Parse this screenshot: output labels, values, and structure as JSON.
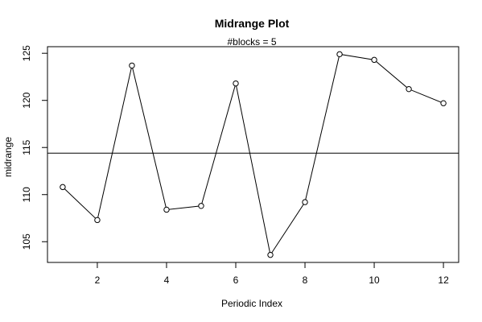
{
  "chart_data": {
    "type": "line",
    "title": "Midrange Plot",
    "subtitle": "#blocks = 5",
    "xlabel": "Periodic Index",
    "ylabel": "midrange",
    "x": [
      1,
      2,
      3,
      4,
      5,
      6,
      7,
      8,
      9,
      10,
      11,
      12
    ],
    "values": [
      110.8,
      107.3,
      123.7,
      108.4,
      108.8,
      121.8,
      103.6,
      109.2,
      124.9,
      124.3,
      121.2,
      119.7
    ],
    "reference_line": 114.4,
    "xlim": [
      0.56,
      12.44
    ],
    "ylim": [
      102.8,
      125.7
    ],
    "x_ticks": [
      2,
      4,
      6,
      8,
      10,
      12
    ],
    "y_ticks": [
      105,
      110,
      115,
      120,
      125
    ],
    "grid": false,
    "marker": "open-circle",
    "colors": {
      "line": "#000000",
      "marker_fill": "#ffffff",
      "background": "#ffffff"
    }
  }
}
